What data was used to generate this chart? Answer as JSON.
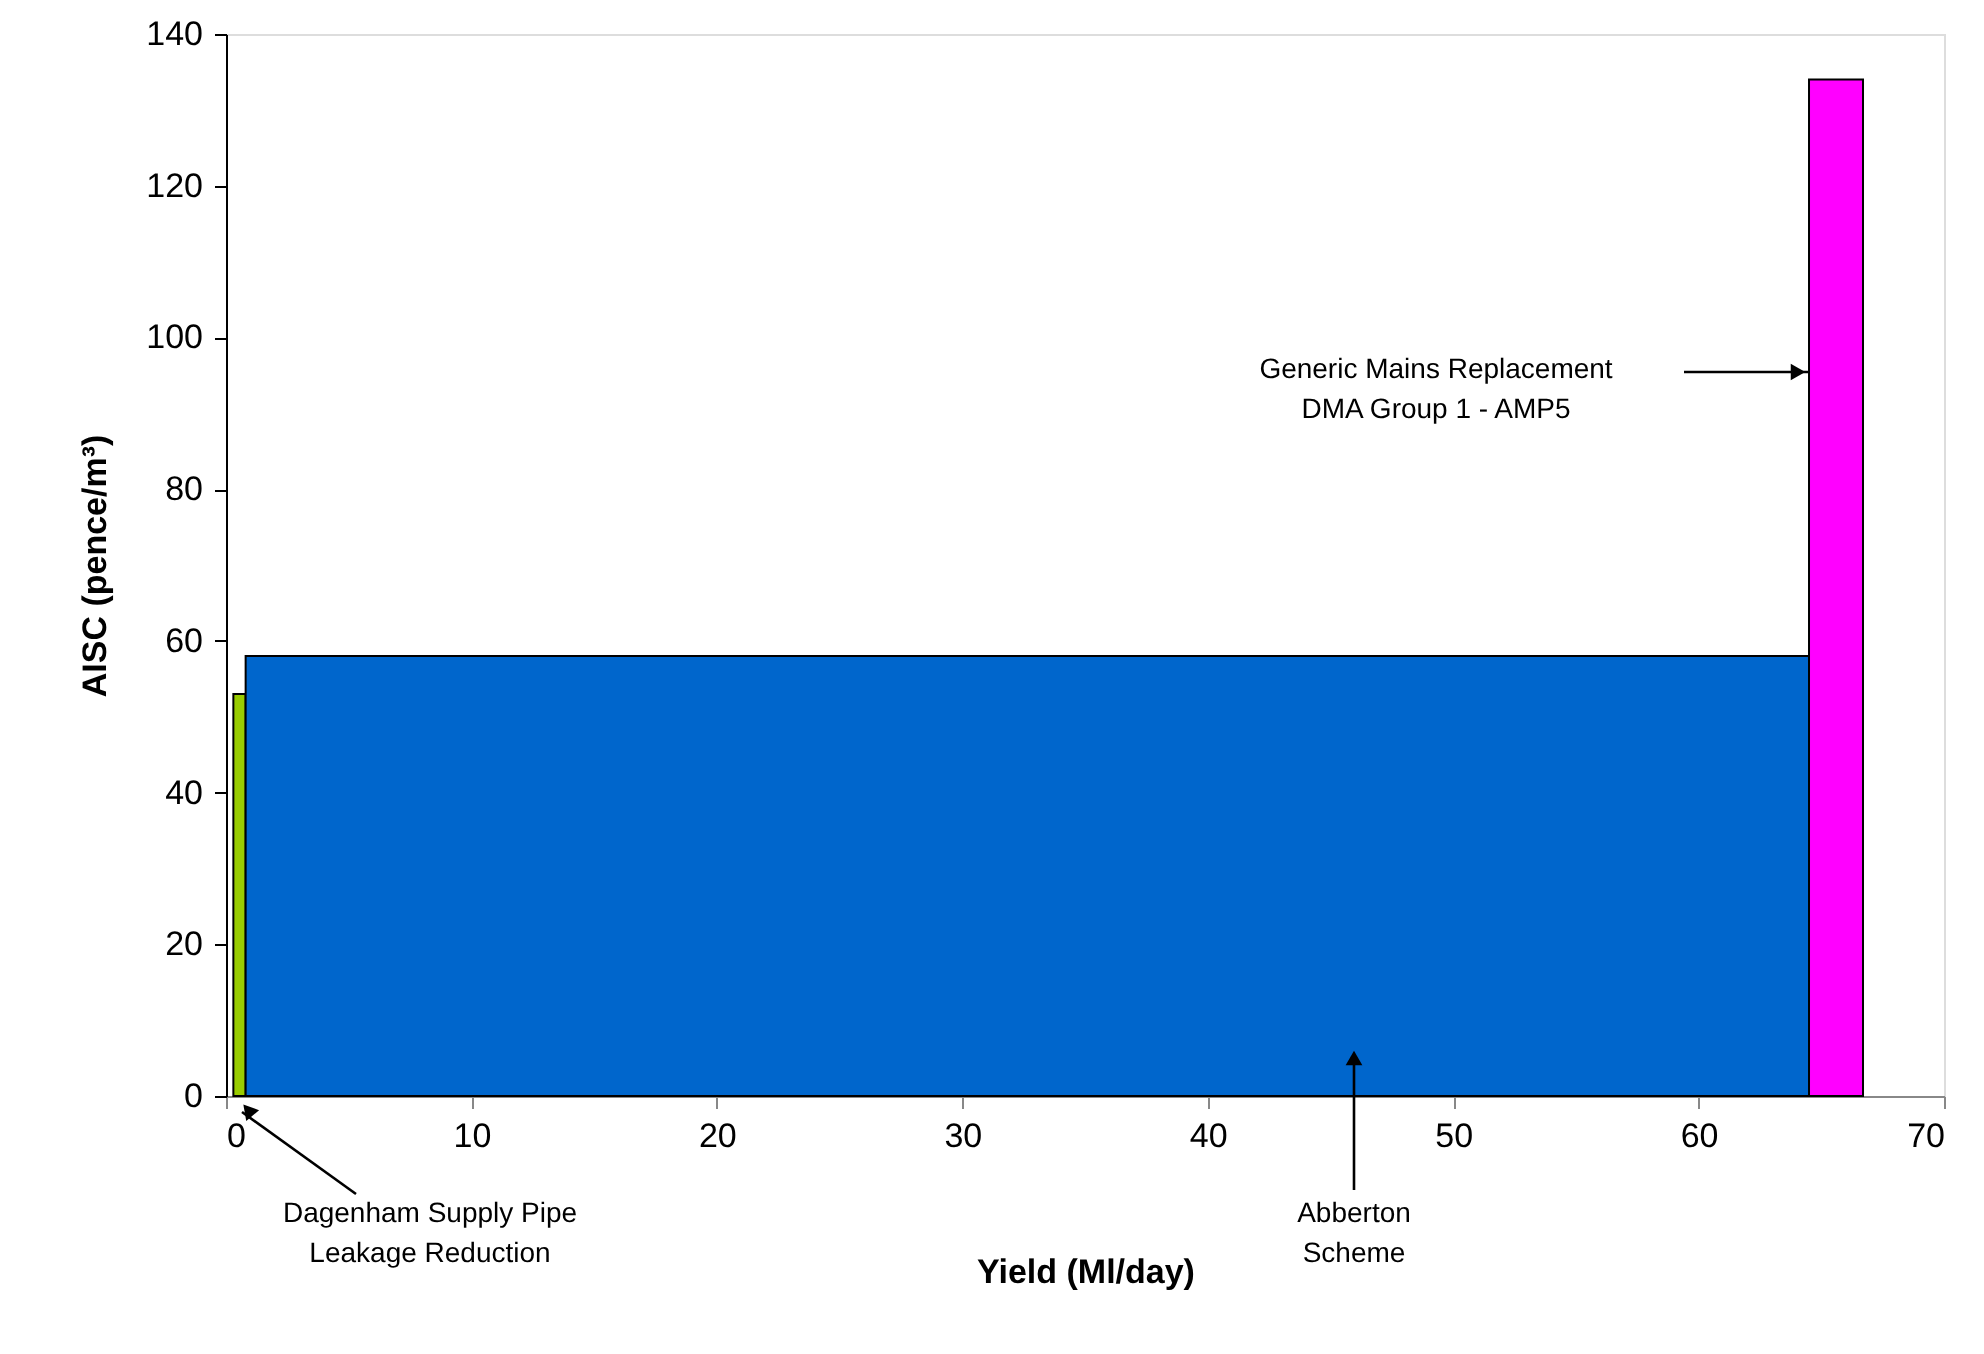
{
  "chart_data": {
    "type": "area",
    "xlabel": "Yield (Ml/day)",
    "ylabel": "AISC (pence/m³)",
    "xlim": [
      0,
      70
    ],
    "xticks": [
      0,
      10,
      20,
      30,
      40,
      50,
      60,
      70
    ],
    "ylim": [
      0,
      140
    ],
    "yticks": [
      0,
      20,
      40,
      60,
      80,
      100,
      120,
      140
    ],
    "grid": false,
    "series": [
      {
        "color": "#99cc00",
        "x": [
          0.3,
          0.8
        ],
        "values": [
          53,
          53
        ]
      },
      {
        "color": "#0066cc",
        "x": [
          0.8,
          64.5
        ],
        "values": [
          58,
          58
        ]
      },
      {
        "color": "#ff00ff",
        "x": [
          64.5,
          66.7
        ],
        "values": [
          134,
          134
        ]
      }
    ],
    "annotations": [
      "Dagenham Supply Pipe\nLeakage Reduction",
      "Abberton\nScheme",
      "Generic Mains Replacement\nDMA Group 1 - AMP5"
    ]
  }
}
